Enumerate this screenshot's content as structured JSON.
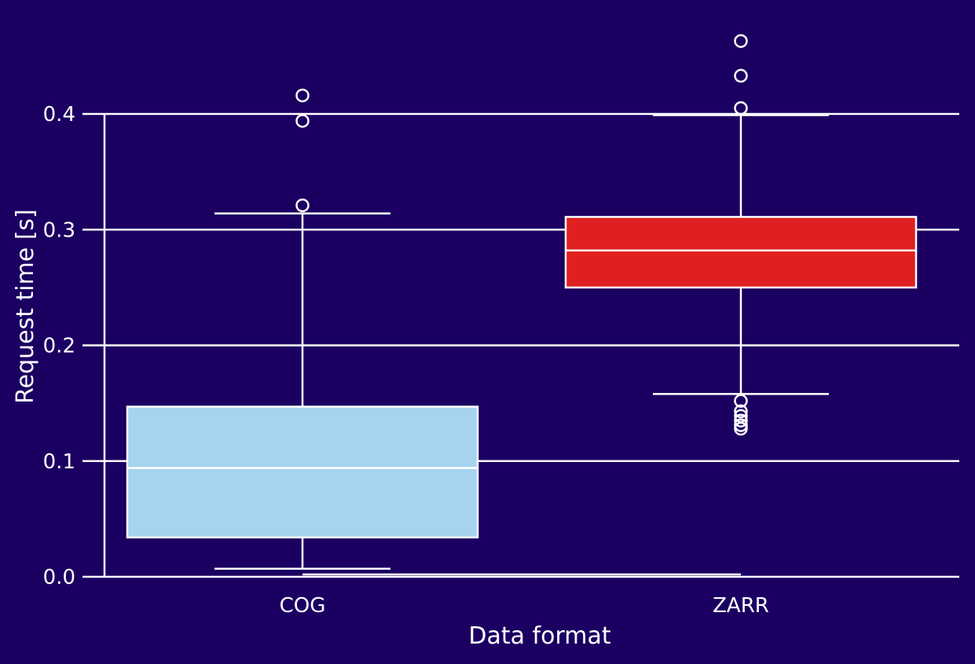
{
  "colors": {
    "background": "#1b0062",
    "foreground": "#ffffff"
  },
  "chart_data": {
    "type": "box",
    "xlabel": "Data format",
    "ylabel": "Request time [s]",
    "ylim": [
      0.0,
      0.47
    ],
    "yticks": [
      0.0,
      0.1,
      0.2,
      0.3,
      0.4
    ],
    "ytick_labels": [
      "0.0",
      "0.1",
      "0.2",
      "0.3",
      "0.4"
    ],
    "grid": "horizontal",
    "categories": [
      "COG",
      "ZARR"
    ],
    "series": [
      {
        "category": "COG",
        "color": "#a6d3ee",
        "whisker_low": 0.007,
        "q1": 0.034,
        "median": 0.094,
        "q3": 0.147,
        "whisker_high": 0.314,
        "outliers": [
          0.321,
          0.394,
          0.416
        ]
      },
      {
        "category": "ZARR",
        "color": "#e02020",
        "whisker_low": 0.158,
        "q1": 0.25,
        "median": 0.282,
        "q3": 0.311,
        "whisker_high": 0.399,
        "outliers": [
          0.128,
          0.131,
          0.135,
          0.139,
          0.143,
          0.152,
          0.405,
          0.433,
          0.463
        ]
      }
    ]
  }
}
